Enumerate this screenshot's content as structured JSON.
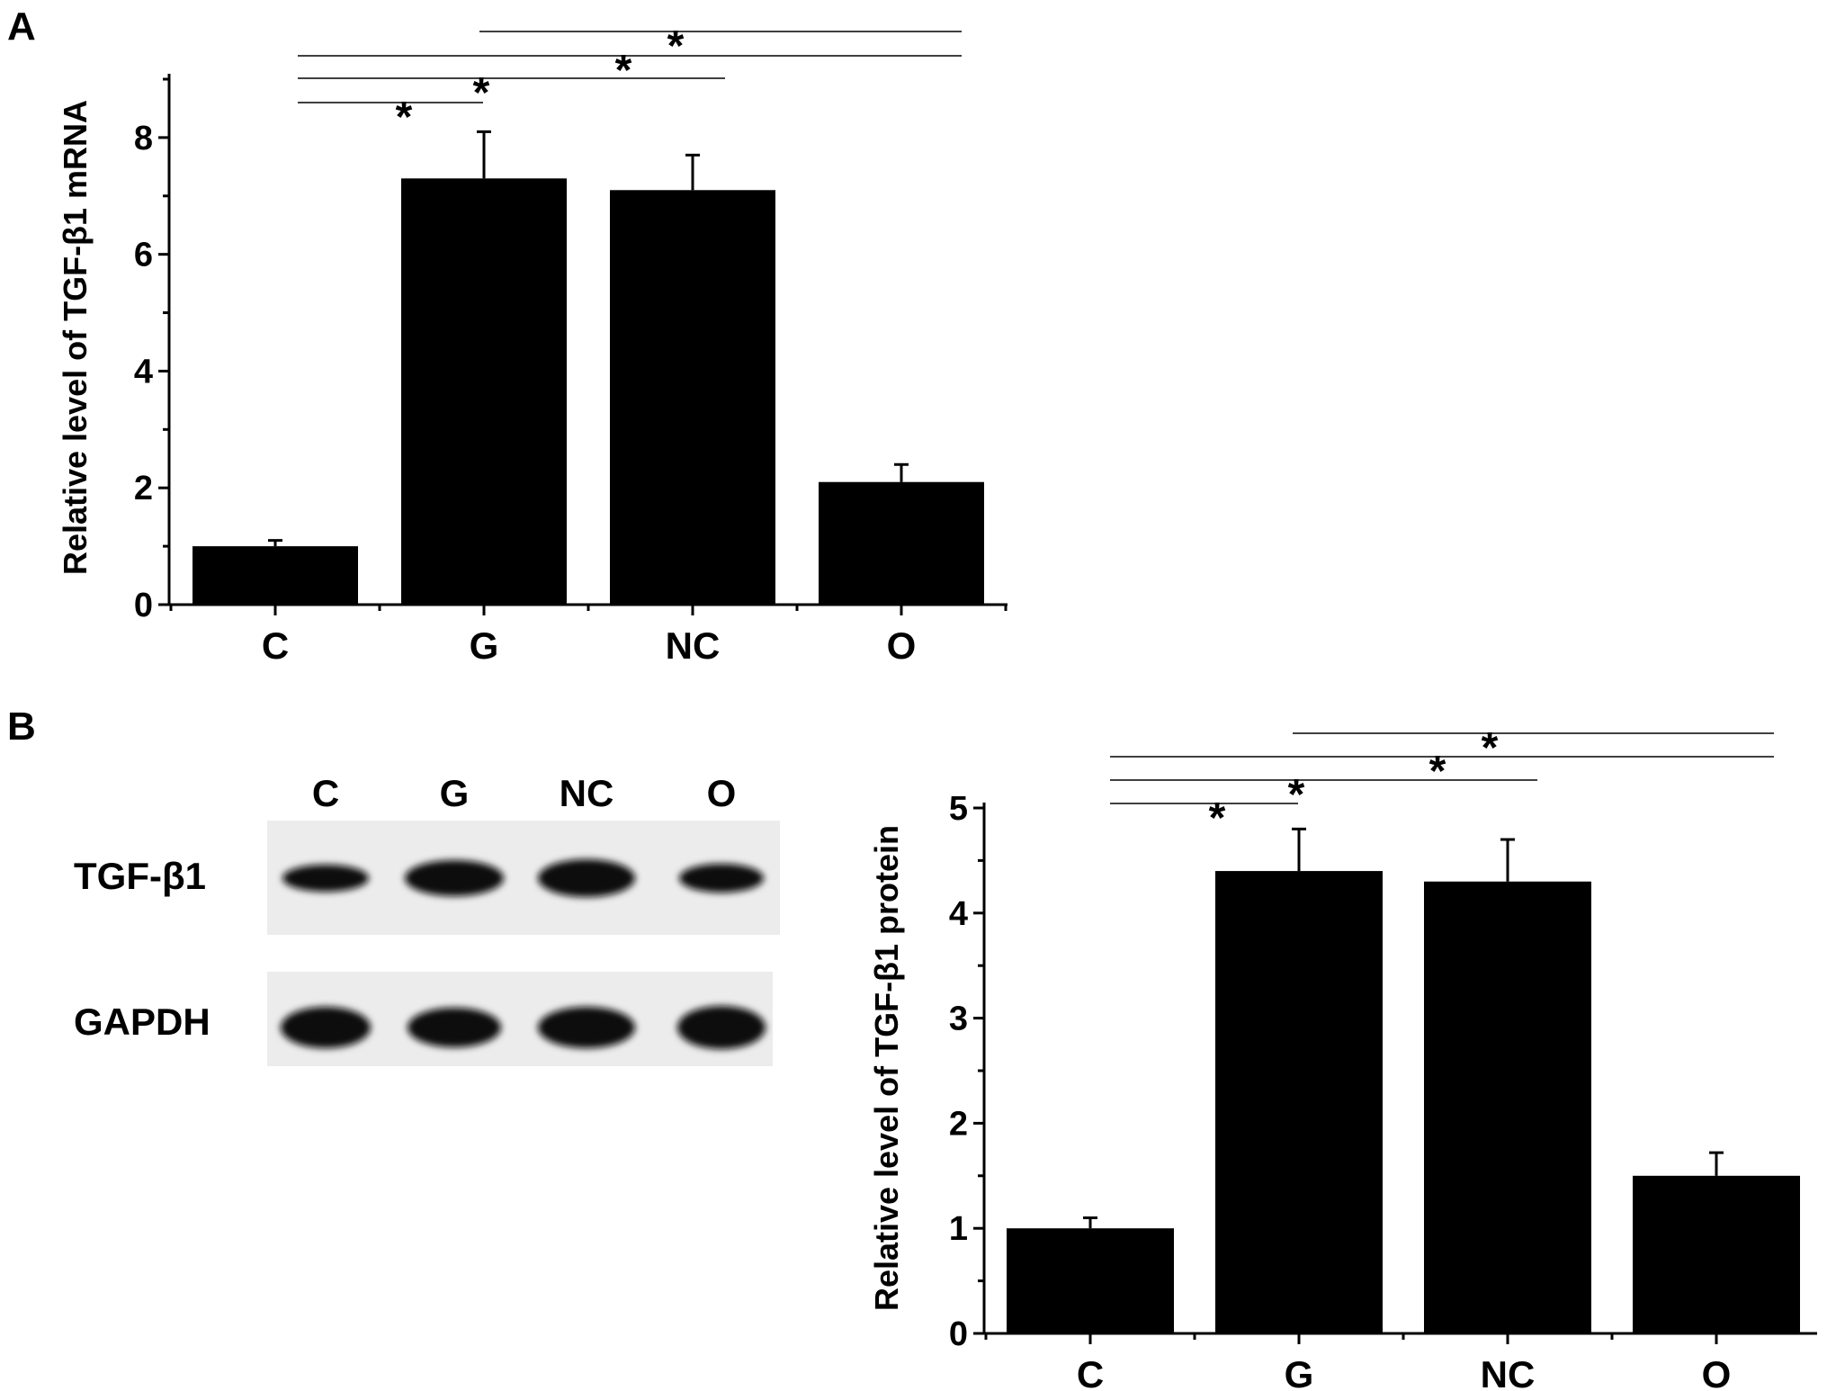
{
  "panels": {
    "a_label": "A",
    "b_label": "B"
  },
  "chart_data": [
    {
      "type": "bar",
      "categories": [
        "C",
        "G",
        "NC",
        "O"
      ],
      "values": [
        1.0,
        7.3,
        7.1,
        2.1
      ],
      "errors": [
        0.1,
        0.8,
        0.6,
        0.3
      ],
      "title": "",
      "xlabel": "",
      "ylabel": "Relative level of TGF-β1 mRNA",
      "ylim": [
        0,
        9
      ],
      "yticks": [
        0,
        2,
        4,
        6,
        8
      ],
      "significance": [
        {
          "from": "C",
          "to": "G",
          "label": "*"
        },
        {
          "from": "C",
          "to": "NC",
          "label": "*"
        },
        {
          "from": "C",
          "to": "O",
          "label": "*"
        },
        {
          "from": "G",
          "to": "O",
          "label": "*"
        }
      ],
      "bar_color": "#000000"
    },
    {
      "type": "bar",
      "categories": [
        "C",
        "G",
        "NC",
        "O"
      ],
      "values": [
        1.0,
        4.4,
        4.3,
        1.5
      ],
      "errors": [
        0.1,
        0.4,
        0.4,
        0.22
      ],
      "title": "",
      "xlabel": "",
      "ylabel": "Relative level of TGF-β1 protein",
      "ylim": [
        0,
        5
      ],
      "yticks": [
        0,
        1,
        2,
        3,
        4,
        5
      ],
      "significance": [
        {
          "from": "C",
          "to": "G",
          "label": "*"
        },
        {
          "from": "C",
          "to": "NC",
          "label": "*"
        },
        {
          "from": "C",
          "to": "O",
          "label": "*"
        },
        {
          "from": "G",
          "to": "O",
          "label": "*"
        }
      ],
      "bar_color": "#000000"
    }
  ],
  "blot": {
    "lanes": [
      "C",
      "G",
      "NC",
      "O"
    ],
    "rows": [
      {
        "name": "TGF-β1"
      },
      {
        "name": "GAPDH"
      }
    ]
  }
}
